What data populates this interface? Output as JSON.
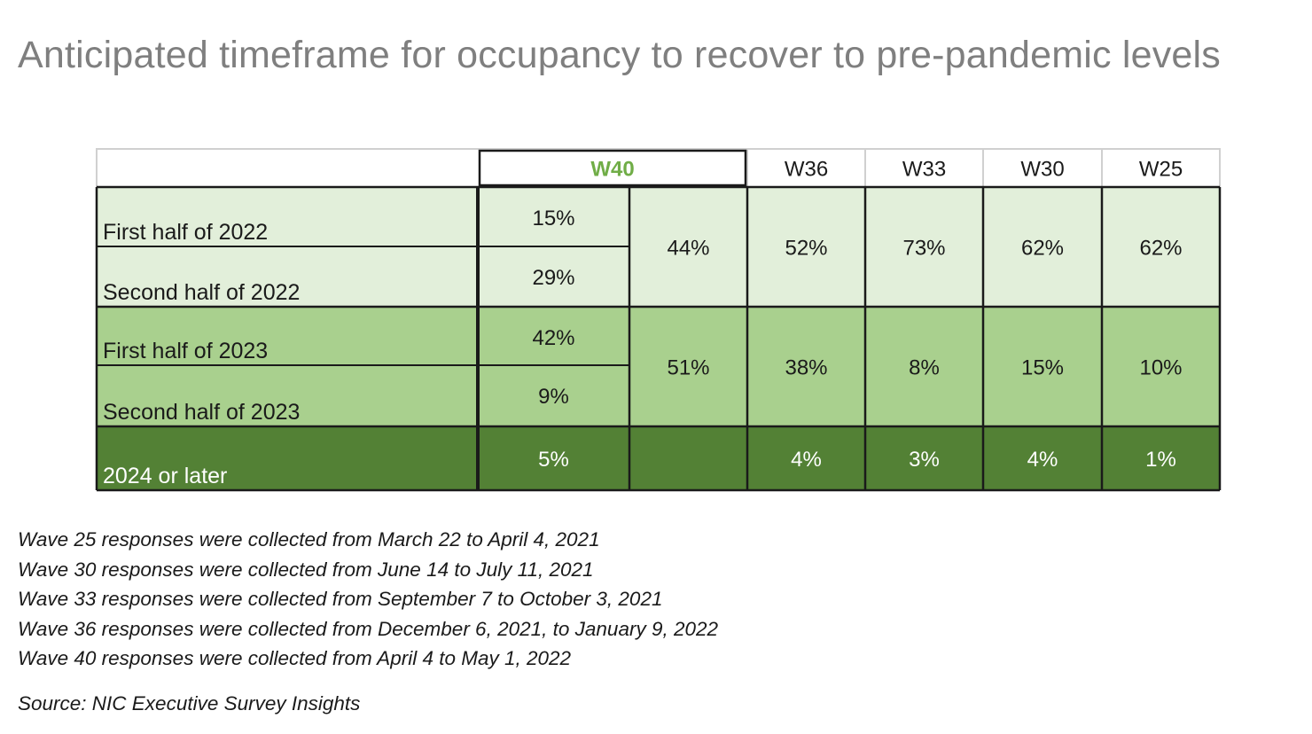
{
  "title": "Anticipated timeframe for occupancy to recover to pre-pandemic levels",
  "chart_data": {
    "type": "table",
    "columns": [
      "W40",
      "W36",
      "W33",
      "W30",
      "W25"
    ],
    "rows": [
      {
        "label": "First half of 2022",
        "W40": "15%"
      },
      {
        "label": "Second half of 2022",
        "W40": "29%"
      },
      {
        "label": "First half of 2023",
        "W40": "42%"
      },
      {
        "label": "Second half of 2023",
        "W40": "9%"
      },
      {
        "label": "2024 or later",
        "W40": "5%"
      }
    ],
    "groups": [
      {
        "rows": [
          "First half of 2022",
          "Second half of 2022"
        ],
        "W40": "44%",
        "W36": "52%",
        "W33": "73%",
        "W30": "62%",
        "W25": "62%"
      },
      {
        "rows": [
          "First half of 2023",
          "Second half of 2023"
        ],
        "W40": "51%",
        "W36": "38%",
        "W33": "8%",
        "W30": "15%",
        "W25": "10%"
      },
      {
        "rows": [
          "2024 or later"
        ],
        "W40": "",
        "W36": "4%",
        "W33": "3%",
        "W30": "4%",
        "W25": "1%"
      }
    ],
    "colors": {
      "group_2022": "#e2efda",
      "group_2023": "#a9d08e",
      "group_2024": "#538135",
      "header_w40": "#70ad47"
    }
  },
  "notes": [
    "Wave 25 responses were collected from March 22 to April 4, 2021",
    "Wave 30 responses were collected from June 14 to July 11, 2021",
    "Wave 33 responses were collected from September 7 to October 3, 2021",
    "Wave 36 responses were collected from December 6, 2021, to January 9, 2022",
    "Wave 40 responses were collected from April 4 to May 1, 2022"
  ],
  "source": "Source: NIC Executive Survey Insights"
}
